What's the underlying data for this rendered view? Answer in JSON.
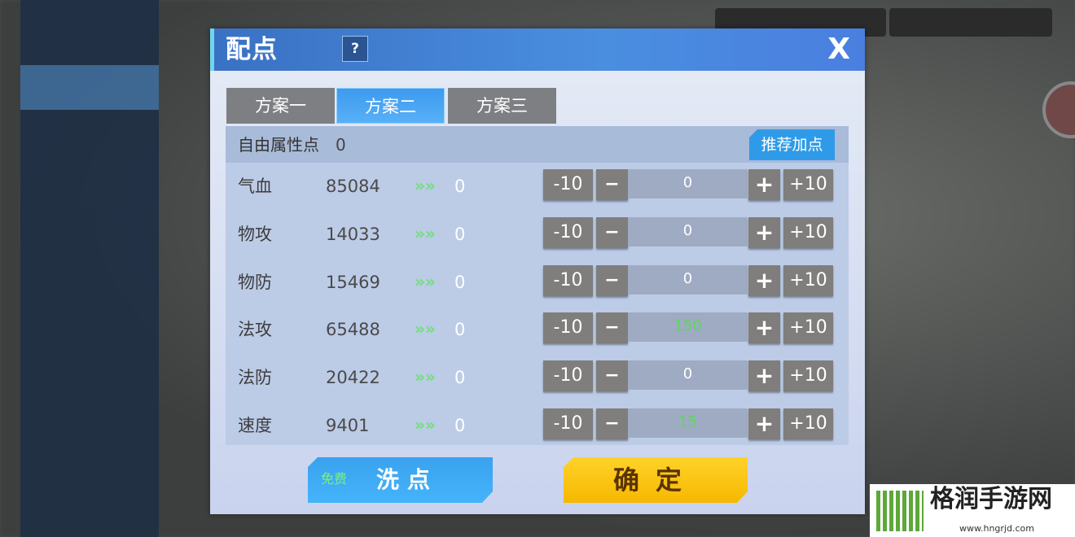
{
  "dialog": {
    "title": "配点",
    "help_label": "?",
    "close_label": "X"
  },
  "tabs": [
    {
      "label": "方案一",
      "active": false
    },
    {
      "label": "方案二",
      "active": true
    },
    {
      "label": "方案三",
      "active": false
    }
  ],
  "free_points": {
    "label": "自由属性点",
    "value": "0"
  },
  "recommend_label": "推荐加点",
  "attributes": [
    {
      "name": "气血",
      "value": "85084",
      "added": "0",
      "allocated": "0"
    },
    {
      "name": "物攻",
      "value": "14033",
      "added": "0",
      "allocated": "0"
    },
    {
      "name": "物防",
      "value": "15469",
      "added": "0",
      "allocated": "0"
    },
    {
      "name": "法攻",
      "value": "65488",
      "added": "0",
      "allocated": "150"
    },
    {
      "name": "法防",
      "value": "20422",
      "added": "0",
      "allocated": "0"
    },
    {
      "name": "速度",
      "value": "9401",
      "added": "0",
      "allocated": "15"
    }
  ],
  "controls": {
    "minus10": "-10",
    "minus": "−",
    "plus": "+",
    "plus10": "+10",
    "arrow": "»»"
  },
  "actions": {
    "free_tag": "免费",
    "wash_label": "洗点",
    "confirm_label": "确定"
  },
  "watermark": {
    "name": "格润手游网",
    "url": "www.hngrjd.com"
  },
  "colors": {
    "header": "#3a71c4",
    "active_tab": "#3d9aee",
    "confirm": "#ffd22a",
    "allocated_nonzero": "#5ed65e"
  }
}
